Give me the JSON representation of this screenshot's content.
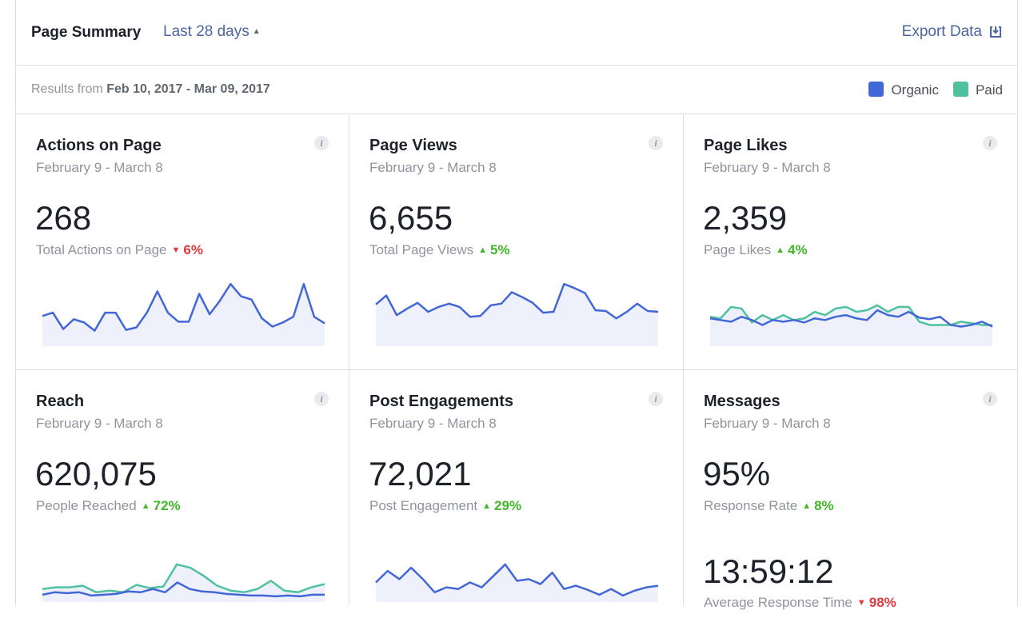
{
  "header": {
    "title": "Page Summary",
    "range": "Last 28 days",
    "export": "Export Data"
  },
  "subheader": {
    "results_prefix": "Results from",
    "results_range": "Feb 10, 2017 - Mar 09, 2017"
  },
  "legend": [
    {
      "label": "Organic",
      "color": "#4267d6"
    },
    {
      "label": "Paid",
      "color": "#4fc1a0"
    }
  ],
  "cards": [
    {
      "title": "Actions on Page",
      "date": "February 9 - March 8",
      "value": "268",
      "label": "Total Actions on Page",
      "change": "6%",
      "direction": "down",
      "organic": [
        33,
        37,
        17,
        29,
        25,
        15,
        37,
        37,
        16,
        19,
        37,
        63,
        37,
        26,
        26,
        60,
        35,
        52,
        72,
        57,
        53,
        30,
        20,
        25,
        32,
        72,
        32,
        24
      ]
    },
    {
      "title": "Page Views",
      "date": "February 9 - March 8",
      "value": "6,655",
      "label": "Total Page Views",
      "change": "5%",
      "direction": "up",
      "organic": [
        47,
        58,
        34,
        42,
        49,
        38,
        44,
        48,
        44,
        32,
        33,
        46,
        48,
        62,
        56,
        49,
        37,
        38,
        72,
        67,
        61,
        40,
        39,
        30,
        38,
        48,
        39,
        38
      ]
    },
    {
      "title": "Page Likes",
      "date": "February 9 - March 8",
      "value": "2,359",
      "label": "Page Likes",
      "change": "4%",
      "direction": "up",
      "organic": [
        30,
        28,
        26,
        32,
        28,
        22,
        28,
        26,
        28,
        25,
        30,
        28,
        32,
        34,
        30,
        28,
        40,
        34,
        32,
        38,
        31,
        29,
        32,
        22,
        20,
        22,
        26,
        20
      ],
      "paid": [
        32,
        30,
        44,
        42,
        25,
        34,
        28,
        34,
        28,
        30,
        38,
        34,
        42,
        44,
        38,
        40,
        46,
        38,
        44,
        44,
        26,
        22,
        22,
        22,
        26,
        24,
        22,
        22
      ]
    },
    {
      "title": "Reach",
      "date": "February 9 - March 8",
      "value": "620,075",
      "label": "People Reached",
      "change": "72%",
      "direction": "up",
      "organic": [
        5,
        8,
        7,
        8,
        4,
        5,
        6,
        9,
        8,
        12,
        8,
        20,
        12,
        9,
        8,
        6,
        5,
        4,
        4,
        3,
        4,
        3,
        5,
        5
      ],
      "paid": [
        12,
        14,
        14,
        16,
        8,
        10,
        8,
        17,
        13,
        15,
        42,
        38,
        28,
        16,
        10,
        8,
        12,
        22,
        10,
        8,
        14,
        18
      ]
    },
    {
      "title": "Post Engagements",
      "date": "February 9 - March 8",
      "value": "72,021",
      "label": "Post Engagement",
      "change": "29%",
      "direction": "up",
      "organic": [
        20,
        34,
        24,
        38,
        24,
        8,
        14,
        12,
        20,
        14,
        28,
        42,
        22,
        24,
        18,
        32,
        12,
        16,
        11,
        5,
        12,
        4,
        10,
        14,
        16
      ]
    },
    {
      "title": "Messages",
      "date": "February 9 - March 8",
      "value": "95%",
      "label": "Response Rate",
      "change": "8%",
      "direction": "up",
      "value2": "13:59:12",
      "label2": "Average Response Time",
      "change2": "98%",
      "direction2": "down"
    }
  ]
}
